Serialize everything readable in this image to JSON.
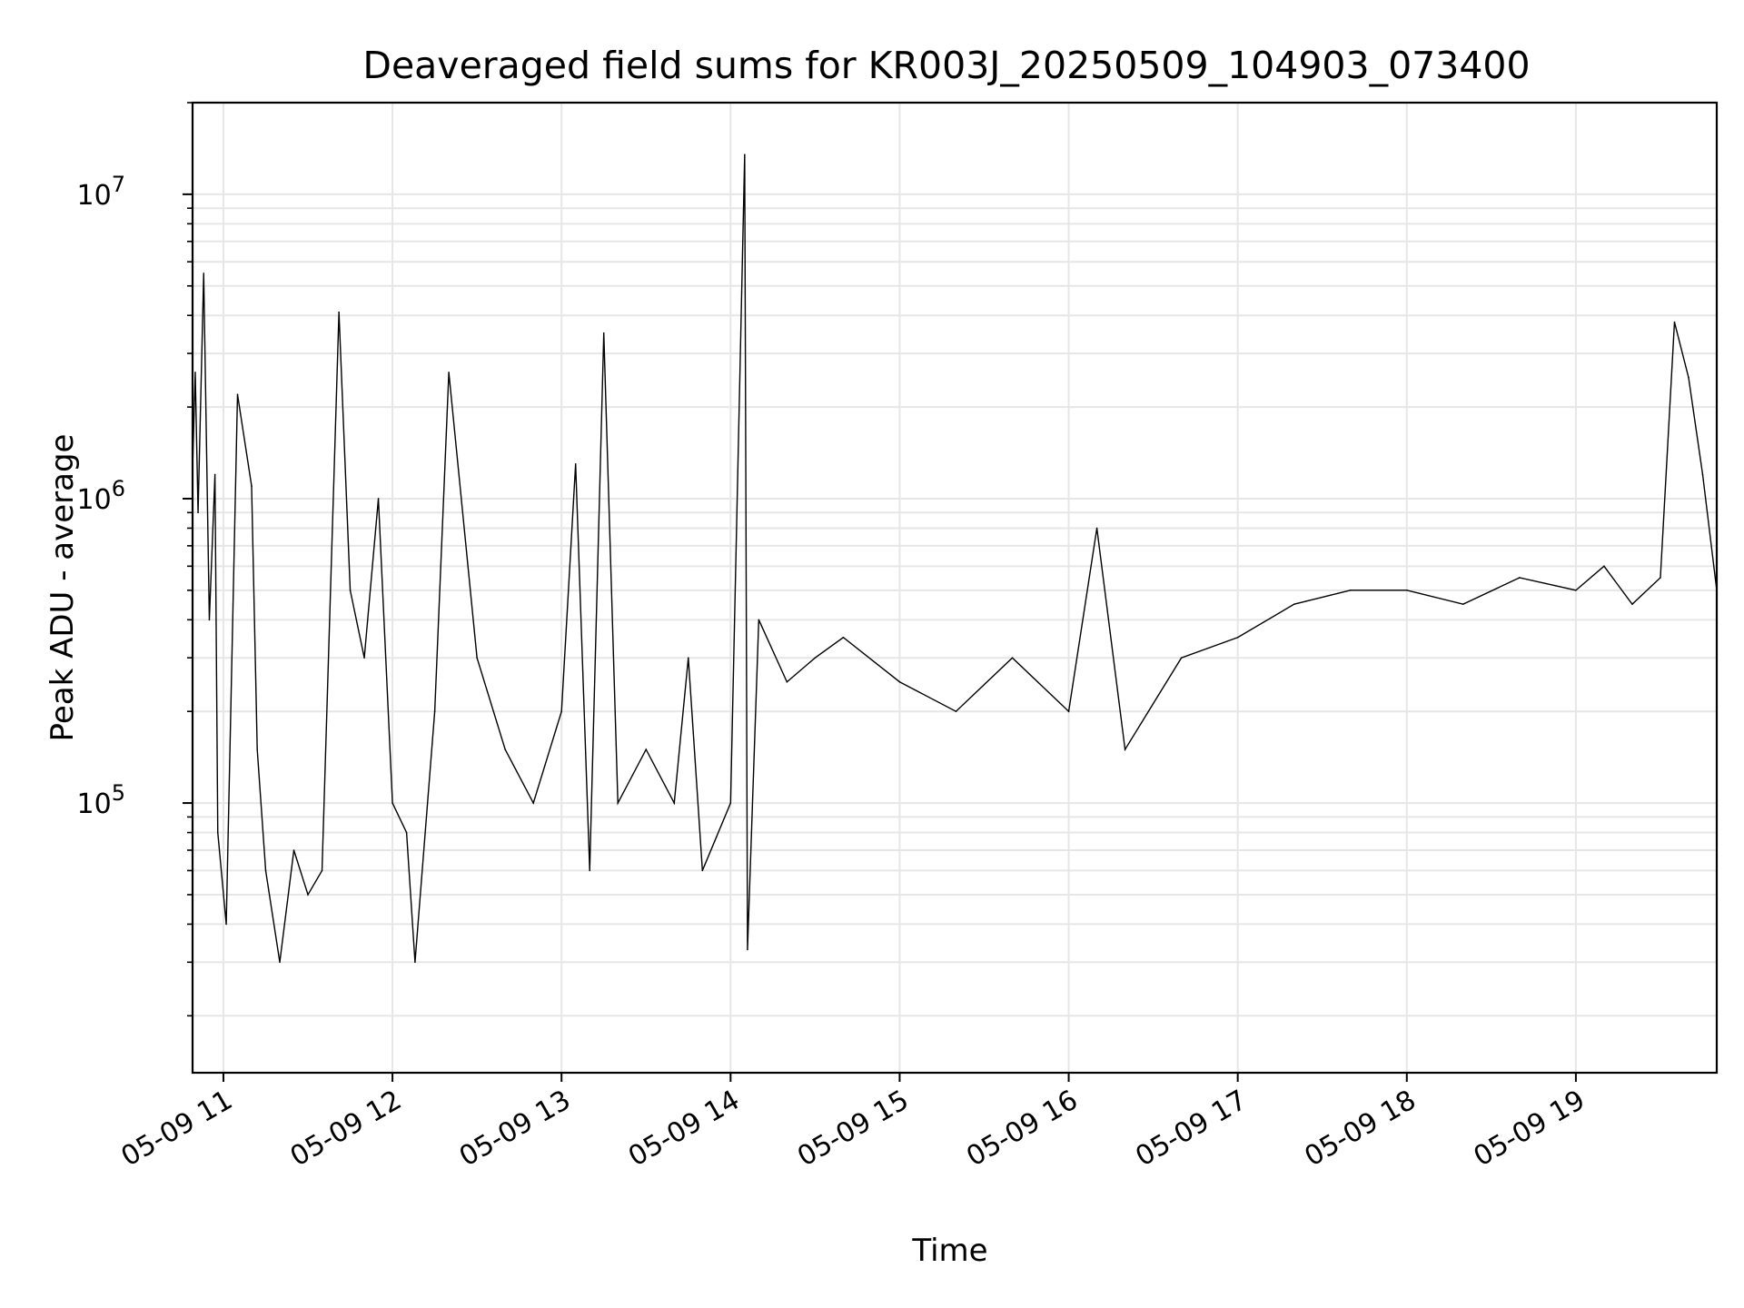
{
  "chart_data": {
    "type": "line",
    "title": "Deaveraged field sums for KR003J_20250509_104903_073400",
    "xlabel": "Time",
    "ylabel": "Peak ADU - average",
    "x_range": [
      "05-09 10:49:03",
      "05-09 19:50:00"
    ],
    "y_range": [
      13000,
      20000000
    ],
    "y_scale": "log",
    "grid": "on (major and minor)",
    "legend": "none",
    "line_color": "#000000",
    "grid_color": "#e6e6e6",
    "x_ticks": [
      {
        "value": "05-09 11:00",
        "label": "05-09 11"
      },
      {
        "value": "05-09 12:00",
        "label": "05-09 12"
      },
      {
        "value": "05-09 13:00",
        "label": "05-09 13"
      },
      {
        "value": "05-09 14:00",
        "label": "05-09 14"
      },
      {
        "value": "05-09 15:00",
        "label": "05-09 15"
      },
      {
        "value": "05-09 16:00",
        "label": "05-09 16"
      },
      {
        "value": "05-09 17:00",
        "label": "05-09 17"
      },
      {
        "value": "05-09 18:00",
        "label": "05-09 18"
      },
      {
        "value": "05-09 19:00",
        "label": "05-09 19"
      }
    ],
    "y_ticks": [
      {
        "value": 100000,
        "base": "10",
        "exp": "5"
      },
      {
        "value": 1000000,
        "base": "10",
        "exp": "6"
      },
      {
        "value": 10000000,
        "base": "10",
        "exp": "7"
      }
    ],
    "series": [
      {
        "x": [
          "05-09 10:49",
          "05-09 10:50",
          "05-09 10:51",
          "05-09 10:53",
          "05-09 10:55",
          "05-09 10:57",
          "05-09 10:58",
          "05-09 11:01",
          "05-09 11:05",
          "05-09 11:10",
          "05-09 11:12",
          "05-09 11:15",
          "05-09 11:20",
          "05-09 11:25",
          "05-09 11:30",
          "05-09 11:35",
          "05-09 11:41",
          "05-09 11:45",
          "05-09 11:50",
          "05-09 11:55",
          "05-09 12:00",
          "05-09 12:05",
          "05-09 12:08",
          "05-09 12:15",
          "05-09 12:20",
          "05-09 12:30",
          "05-09 12:40",
          "05-09 12:50",
          "05-09 13:00",
          "05-09 13:05",
          "05-09 13:10",
          "05-09 13:15",
          "05-09 13:20",
          "05-09 13:30",
          "05-09 13:40",
          "05-09 13:45",
          "05-09 13:50",
          "05-09 14:00",
          "05-09 14:05",
          "05-09 14:06",
          "05-09 14:10",
          "05-09 14:20",
          "05-09 14:30",
          "05-09 14:40",
          "05-09 15:00",
          "05-09 15:20",
          "05-09 15:40",
          "05-09 16:00",
          "05-09 16:10",
          "05-09 16:20",
          "05-09 16:40",
          "05-09 17:00",
          "05-09 17:20",
          "05-09 17:40",
          "05-09 18:00",
          "05-09 18:20",
          "05-09 18:40",
          "05-09 19:00",
          "05-09 19:10",
          "05-09 19:20",
          "05-09 19:30",
          "05-09 19:35",
          "05-09 19:40",
          "05-09 19:45",
          "05-09 19:50"
        ],
        "y": [
          1200000,
          2600000,
          900000,
          5500000,
          400000,
          1200000,
          80000,
          40000,
          2200000,
          1100000,
          150000,
          60000,
          30000,
          70000,
          50000,
          60000,
          4100000,
          500000,
          300000,
          1000000,
          100000,
          80000,
          30000,
          200000,
          2600000,
          300000,
          150000,
          100000,
          200000,
          1300000,
          60000,
          3500000,
          100000,
          150000,
          100000,
          300000,
          60000,
          100000,
          13500000,
          33000,
          400000,
          250000,
          300000,
          350000,
          250000,
          200000,
          300000,
          200000,
          800000,
          150000,
          300000,
          350000,
          450000,
          500000,
          500000,
          450000,
          550000,
          500000,
          600000,
          450000,
          550000,
          3800000,
          2500000,
          1200000,
          500000
        ]
      }
    ]
  }
}
